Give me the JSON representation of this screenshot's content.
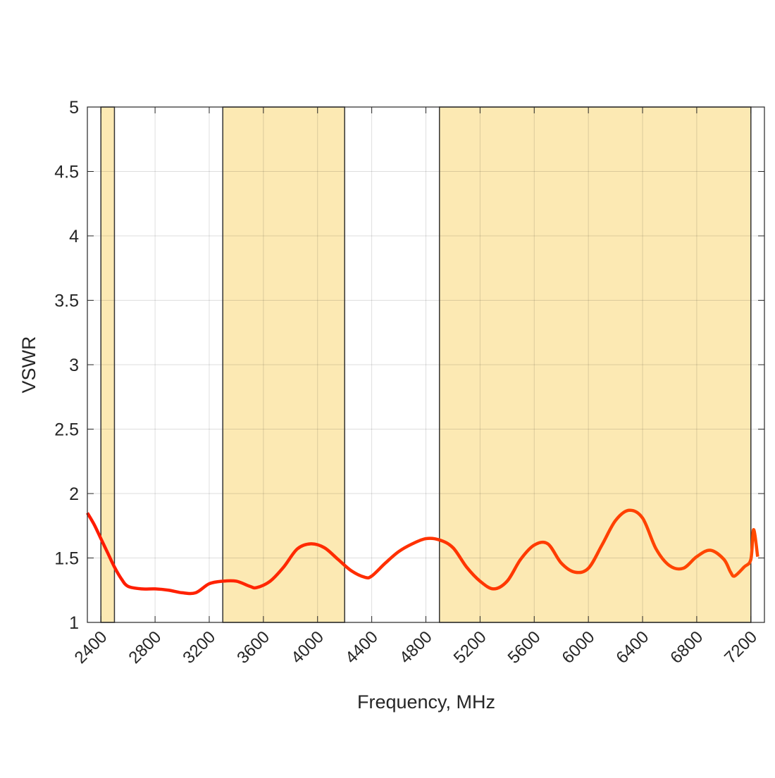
{
  "chart_data": {
    "type": "line",
    "title": "",
    "xlabel": "Frequency, MHz",
    "ylabel": "VSWR",
    "xlim": [
      2300,
      7300
    ],
    "ylim": [
      1,
      5
    ],
    "xticks": [
      2400,
      2800,
      3200,
      3600,
      4000,
      4400,
      4800,
      5200,
      5600,
      6000,
      6400,
      6800,
      7200
    ],
    "yticks": [
      1,
      1.5,
      2,
      2.5,
      3,
      3.5,
      4,
      4.5,
      5
    ],
    "ytick_labels": [
      "1",
      "1.5",
      "2",
      "2.5",
      "3",
      "3.5",
      "4",
      "4.5",
      "5"
    ],
    "grid": true,
    "bands": [
      [
        2400,
        2500
      ],
      [
        3300,
        4200
      ],
      [
        4900,
        7200
      ]
    ],
    "band_color": "#fce9b3",
    "line_color_start": "#ff1a00",
    "line_color_end": "#ff4a00",
    "series": [
      {
        "name": "VSWR",
        "x": [
          2300,
          2350,
          2400,
          2450,
          2500,
          2550,
          2600,
          2700,
          2800,
          2900,
          3000,
          3100,
          3200,
          3300,
          3400,
          3500,
          3550,
          3650,
          3750,
          3850,
          3950,
          4050,
          4150,
          4250,
          4350,
          4400,
          4500,
          4600,
          4700,
          4800,
          4900,
          5000,
          5100,
          5200,
          5300,
          5400,
          5500,
          5600,
          5700,
          5800,
          5900,
          6000,
          6100,
          6200,
          6300,
          6400,
          6500,
          6600,
          6700,
          6800,
          6900,
          7000,
          7050,
          7080,
          7150,
          7200,
          7220,
          7250
        ],
        "y": [
          1.85,
          1.76,
          1.65,
          1.54,
          1.43,
          1.34,
          1.28,
          1.26,
          1.26,
          1.25,
          1.23,
          1.23,
          1.3,
          1.32,
          1.32,
          1.28,
          1.27,
          1.32,
          1.43,
          1.57,
          1.61,
          1.58,
          1.49,
          1.4,
          1.35,
          1.36,
          1.46,
          1.55,
          1.61,
          1.65,
          1.64,
          1.58,
          1.43,
          1.32,
          1.26,
          1.32,
          1.49,
          1.6,
          1.61,
          1.46,
          1.39,
          1.42,
          1.6,
          1.79,
          1.87,
          1.81,
          1.57,
          1.44,
          1.42,
          1.51,
          1.56,
          1.49,
          1.39,
          1.36,
          1.43,
          1.49,
          1.72,
          1.51
        ]
      }
    ]
  }
}
